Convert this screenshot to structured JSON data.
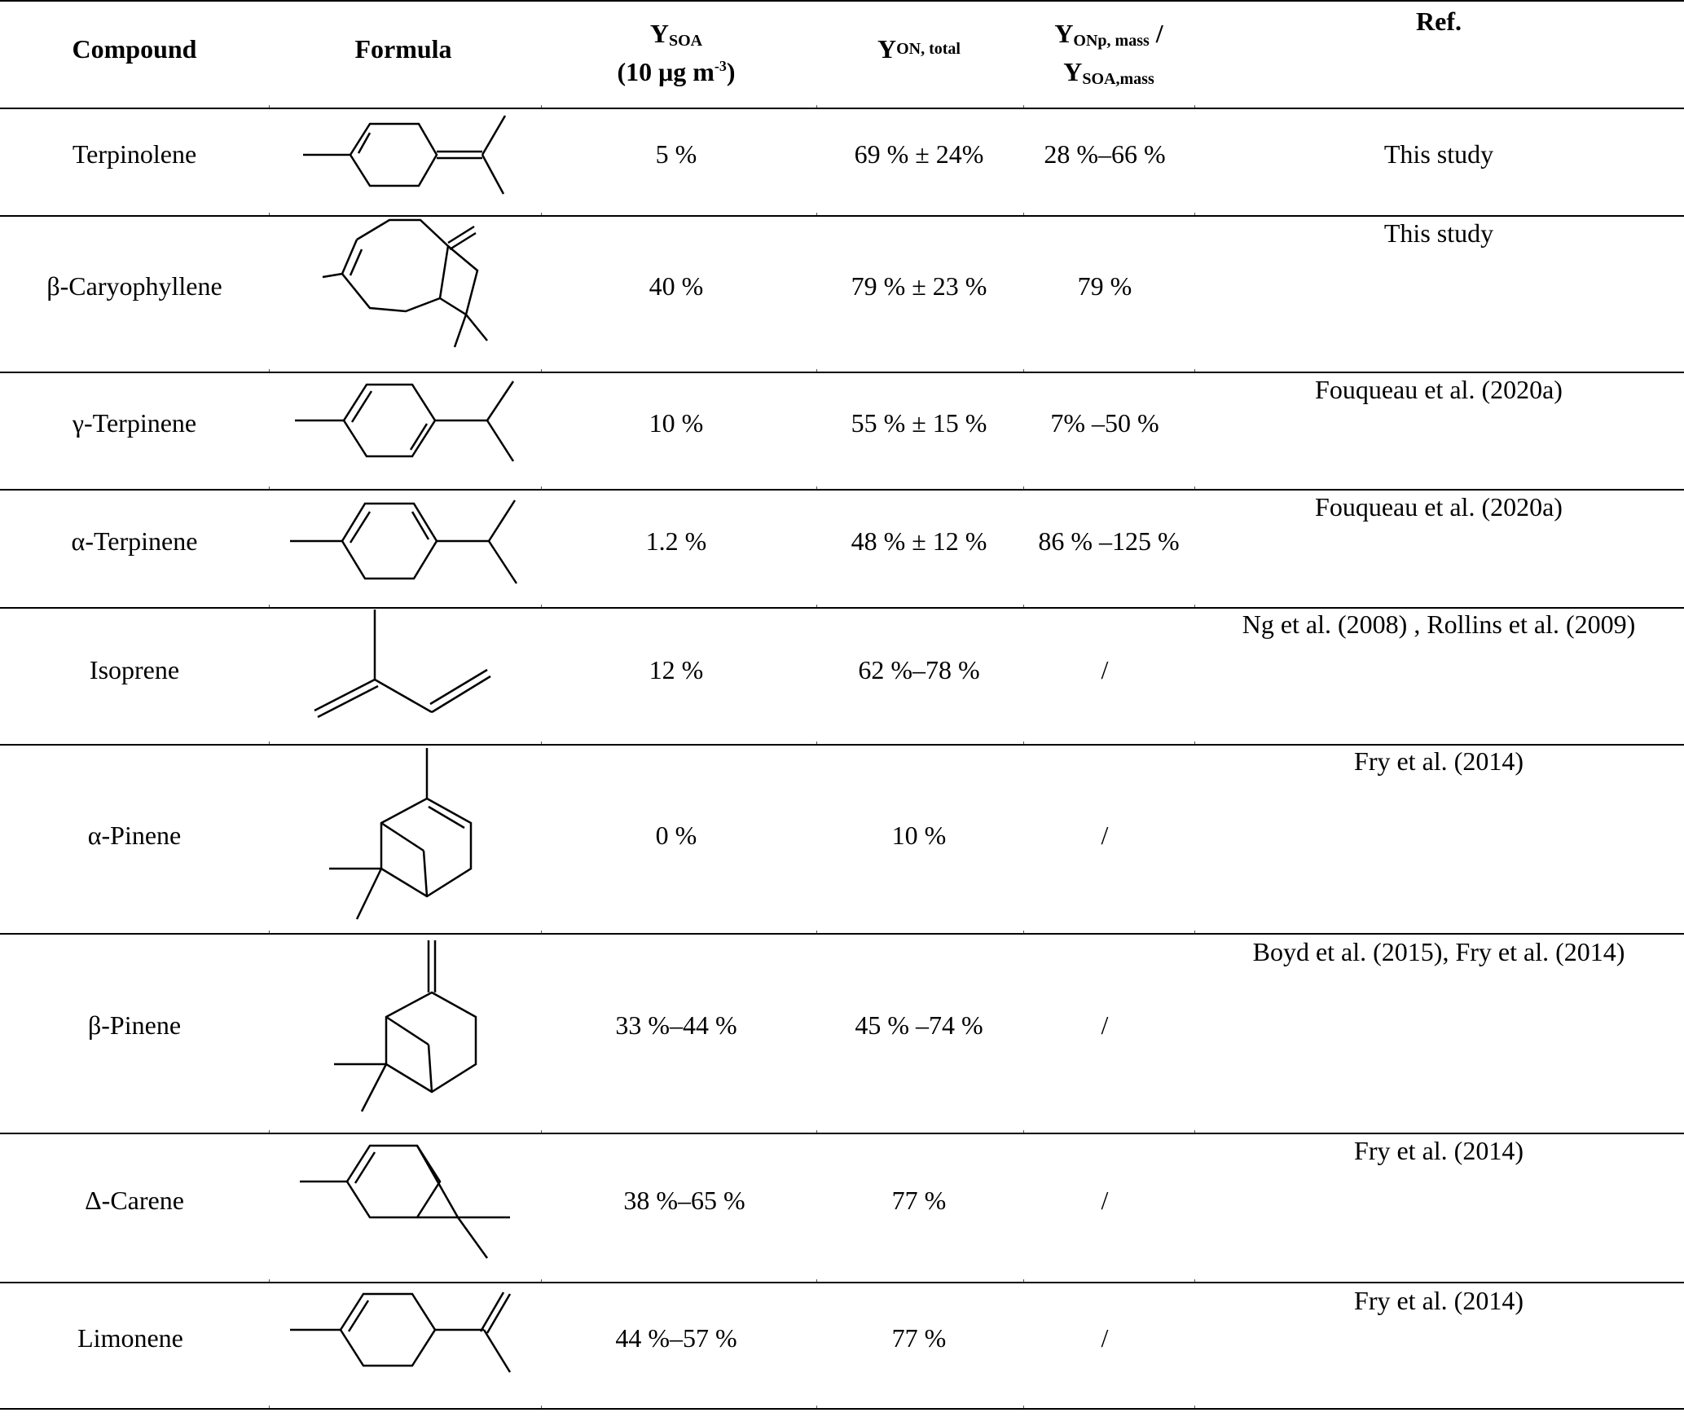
{
  "table": {
    "headers": {
      "compound": "Compound",
      "formula": "Formula",
      "ysoa_main": "Y",
      "ysoa_sub": "SOA",
      "ysoa_line2_pre": "(10 μg m",
      "ysoa_line2_sup": "-3",
      "ysoa_line2_post": ")",
      "yon_main": "Y",
      "yon_sub": "ON, total",
      "yonp_main": "Y",
      "yonp_sub": "ONp, mass",
      "yonp_slash": " /",
      "ysoam_main": "Y",
      "ysoam_sub": "SOA,mass",
      "ref": "Ref."
    },
    "rows": [
      {
        "compound": "Terpinolene",
        "formula_icon": "terpinolene-structure",
        "ysoa": "5 %",
        "yon_total": "69 % ± 24%",
        "yonp_ratio": "28 %–66 %",
        "ref": "This study"
      },
      {
        "compound": "β-Caryophyllene",
        "formula_icon": "caryophyllene-structure",
        "ysoa": "40 %",
        "yon_total": "79 % ± 23 %",
        "yonp_ratio": "79 %",
        "ref": "This study"
      },
      {
        "compound": "γ-Terpinene",
        "formula_icon": "gamma-terpinene-structure",
        "ysoa": "10 %",
        "yon_total": "55 % ± 15 %",
        "yonp_ratio": "7% –50 %",
        "ref": "Fouqueau et al. (2020a)"
      },
      {
        "compound": "α-Terpinene",
        "formula_icon": "alpha-terpinene-structure",
        "ysoa": "1.2 %",
        "yon_total": "48 % ± 12 %",
        "yonp_ratio": "86 % –125 %",
        "ref": "Fouqueau et al. (2020a)"
      },
      {
        "compound": "Isoprene",
        "formula_icon": "isoprene-structure",
        "ysoa": "12 %",
        "yon_total": "62 %–78 %",
        "yonp_ratio": "/",
        "ref": "Ng et al. (2008) , Rollins et al. (2009)"
      },
      {
        "compound": "α-Pinene",
        "formula_icon": "alpha-pinene-structure",
        "ysoa": "0 %",
        "yon_total": "10 %",
        "yonp_ratio": "/",
        "ref": "Fry et al. (2014)"
      },
      {
        "compound": "β-Pinene",
        "formula_icon": "beta-pinene-structure",
        "ysoa": "33 %–44 %",
        "yon_total": "45 % –74 %",
        "yonp_ratio": "/",
        "ref": "Boyd et al. (2015), Fry et al. (2014)"
      },
      {
        "compound": "Δ-Carene",
        "formula_icon": "carene-structure",
        "ysoa": "38 %–65 %",
        "yon_total": "77 %",
        "yonp_ratio": "/",
        "ref": "Fry et al. (2014)"
      },
      {
        "compound": "Limonene",
        "formula_icon": "limonene-structure",
        "ysoa": "44 %–57 %",
        "yon_total": "77 %",
        "yonp_ratio": "/",
        "ref": "Fry et al. (2014)"
      }
    ]
  }
}
